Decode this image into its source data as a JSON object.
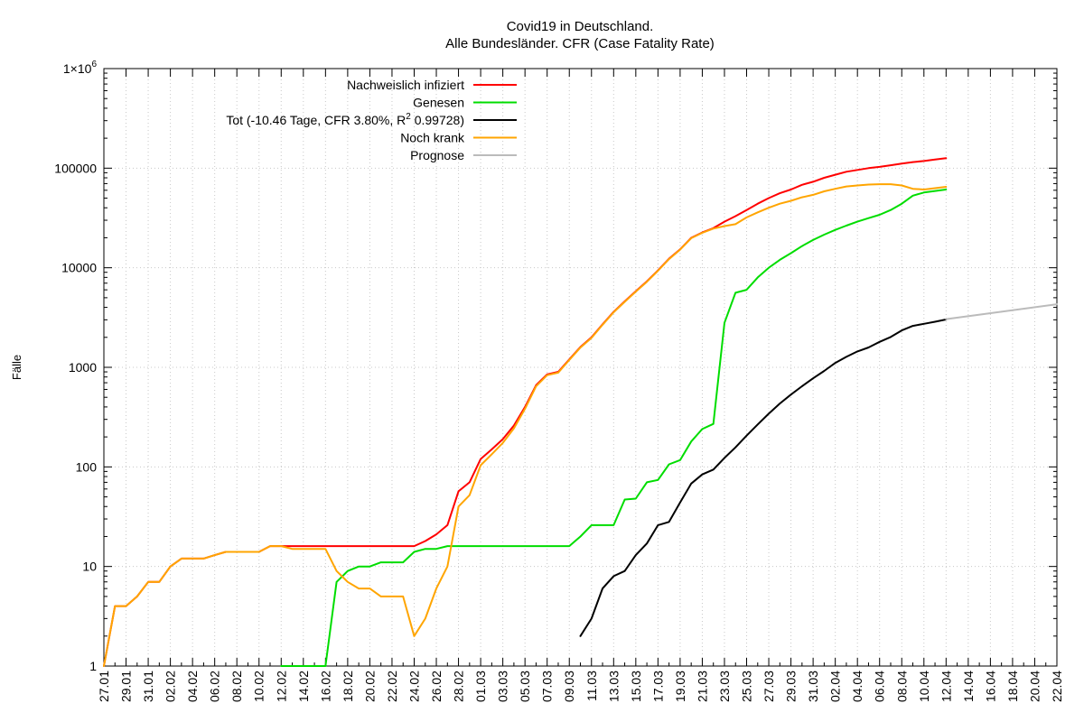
{
  "chart_data": {
    "type": "line",
    "title": "Covid19 in Deutschland.",
    "subtitle": "Alle Bundesländer. CFR (Case Fatality Rate)",
    "xlabel": "",
    "ylabel": "Fälle",
    "y_scale": "log",
    "ylim": [
      1,
      1000000
    ],
    "xlim": [
      "27.01",
      "22.04"
    ],
    "grid": true,
    "legend_position": "top-left",
    "y_ticks": [
      {
        "value": 1,
        "label": "1"
      },
      {
        "value": 10,
        "label": "10"
      },
      {
        "value": 100,
        "label": "100"
      },
      {
        "value": 1000,
        "label": "1000"
      },
      {
        "value": 10000,
        "label": "10000"
      },
      {
        "value": 100000,
        "label": "100000"
      },
      {
        "value": 1000000,
        "label": "1×10",
        "sup": "6"
      }
    ],
    "x_tick_labels": [
      "27.01",
      "29.01",
      "31.01",
      "02.02",
      "04.02",
      "06.02",
      "08.02",
      "10.02",
      "12.02",
      "14.02",
      "16.02",
      "18.02",
      "20.02",
      "22.02",
      "24.02",
      "26.02",
      "28.02",
      "01.03",
      "03.03",
      "05.03",
      "07.03",
      "09.03",
      "11.03",
      "13.03",
      "15.03",
      "17.03",
      "19.03",
      "21.03",
      "23.03",
      "25.03",
      "27.03",
      "29.03",
      "31.03",
      "02.04",
      "04.04",
      "06.04",
      "08.04",
      "10.04",
      "12.04",
      "14.04",
      "16.04",
      "18.04",
      "20.04",
      "22.04"
    ],
    "x_dates": [
      "27.01",
      "28.01",
      "29.01",
      "30.01",
      "31.01",
      "01.02",
      "02.02",
      "03.02",
      "04.02",
      "05.02",
      "06.02",
      "07.02",
      "08.02",
      "09.02",
      "10.02",
      "11.02",
      "12.02",
      "13.02",
      "14.02",
      "15.02",
      "16.02",
      "17.02",
      "18.02",
      "19.02",
      "20.02",
      "21.02",
      "22.02",
      "23.02",
      "24.02",
      "25.02",
      "26.02",
      "27.02",
      "28.02",
      "29.02",
      "01.03",
      "02.03",
      "03.03",
      "04.03",
      "05.03",
      "06.03",
      "07.03",
      "08.03",
      "09.03",
      "10.03",
      "11.03",
      "12.03",
      "13.03",
      "14.03",
      "15.03",
      "16.03",
      "17.03",
      "18.03",
      "19.03",
      "20.03",
      "21.03",
      "22.03",
      "23.03",
      "24.03",
      "25.03",
      "26.03",
      "27.03",
      "28.03",
      "29.03",
      "30.03",
      "31.03",
      "01.04",
      "02.04",
      "03.04",
      "04.04",
      "05.04",
      "06.04",
      "07.04",
      "08.04",
      "09.04",
      "10.04",
      "11.04",
      "12.04",
      "13.04",
      "14.04",
      "15.04",
      "16.04",
      "17.04",
      "18.04",
      "19.04",
      "20.04",
      "21.04",
      "22.04"
    ],
    "series": [
      {
        "name": "Nachweislich infiziert",
        "color": "#ff0000",
        "x": [
          "27.01",
          "28.01",
          "29.01",
          "30.01",
          "31.01",
          "01.02",
          "02.02",
          "03.02",
          "04.02",
          "05.02",
          "06.02",
          "07.02",
          "08.02",
          "09.02",
          "10.02",
          "11.02",
          "12.02",
          "13.02",
          "14.02",
          "15.02",
          "16.02",
          "17.02",
          "18.02",
          "19.02",
          "20.02",
          "21.02",
          "22.02",
          "23.02",
          "24.02",
          "25.02",
          "26.02",
          "27.02",
          "28.02",
          "29.02",
          "01.03",
          "02.03",
          "03.03",
          "04.03",
          "05.03",
          "06.03",
          "07.03",
          "08.03",
          "09.03",
          "10.03",
          "11.03",
          "12.03",
          "13.03",
          "14.03",
          "15.03",
          "16.03",
          "17.03",
          "18.03",
          "19.03",
          "20.03",
          "21.03",
          "22.03",
          "23.03",
          "24.03",
          "25.03",
          "26.03",
          "27.03",
          "28.03",
          "29.03",
          "30.03",
          "31.03",
          "01.04",
          "02.04",
          "03.04",
          "04.04",
          "05.04",
          "06.04",
          "07.04",
          "08.04",
          "09.04",
          "10.04",
          "11.04",
          "12.04"
        ],
        "values": [
          1,
          4,
          4,
          5,
          7,
          7,
          10,
          12,
          12,
          12,
          13,
          14,
          14,
          14,
          14,
          16,
          16,
          16,
          16,
          16,
          16,
          16,
          16,
          16,
          16,
          16,
          16,
          16,
          16,
          18,
          21,
          26,
          57,
          70,
          120,
          150,
          190,
          260,
          400,
          660,
          850,
          900,
          1200,
          1600,
          2000,
          2700,
          3600,
          4600,
          5800,
          7300,
          9400,
          12300,
          15300,
          20000,
          22600,
          25000,
          29000,
          33000,
          38000,
          44000,
          50000,
          56000,
          61000,
          68000,
          73000,
          80000,
          86000,
          92000,
          96000,
          100000,
          103000,
          107000,
          111000,
          115000,
          118000,
          122000,
          126000
        ]
      },
      {
        "name": "Genesen",
        "color": "#00dd00",
        "x": [
          "12.02",
          "13.02",
          "14.02",
          "15.02",
          "16.02",
          "17.02",
          "18.02",
          "19.02",
          "20.02",
          "21.02",
          "22.02",
          "23.02",
          "24.02",
          "25.02",
          "26.02",
          "27.02",
          "28.02",
          "29.02",
          "01.03",
          "02.03",
          "03.03",
          "04.03",
          "05.03",
          "06.03",
          "07.03",
          "08.03",
          "09.03",
          "10.03",
          "11.03",
          "12.03",
          "13.03",
          "14.03",
          "15.03",
          "16.03",
          "17.03",
          "18.03",
          "19.03",
          "20.03",
          "21.03",
          "22.03",
          "23.03",
          "24.03",
          "25.03",
          "26.03",
          "27.03",
          "28.03",
          "29.03",
          "30.03",
          "31.03",
          "01.04",
          "02.04",
          "03.04",
          "04.04",
          "05.04",
          "06.04",
          "07.04",
          "08.04",
          "09.04",
          "10.04",
          "11.04",
          "12.04"
        ],
        "values": [
          1,
          1,
          1,
          1,
          1,
          7,
          9,
          10,
          10,
          11,
          11,
          11,
          14,
          15,
          15,
          16,
          16,
          16,
          16,
          16,
          16,
          16,
          16,
          16,
          16,
          16,
          16,
          20,
          26,
          26,
          26,
          47,
          48,
          70,
          74,
          106,
          117,
          180,
          240,
          270,
          2800,
          5600,
          6000,
          8000,
          10000,
          12000,
          14000,
          16500,
          19000,
          21500,
          24000,
          26500,
          29000,
          31500,
          34000,
          38000,
          44000,
          53000,
          57000,
          59000,
          61000
        ]
      },
      {
        "name": "Tot (-10.46 Tage, CFR 3.80%, R² 0.99728)",
        "color": "#000000",
        "x": [
          "10.03",
          "11.03",
          "12.03",
          "13.03",
          "14.03",
          "15.03",
          "16.03",
          "17.03",
          "18.03",
          "19.03",
          "20.03",
          "21.03",
          "22.03",
          "23.03",
          "24.03",
          "25.03",
          "26.03",
          "27.03",
          "28.03",
          "29.03",
          "30.03",
          "31.03",
          "01.04",
          "02.04",
          "03.04",
          "04.04",
          "05.04",
          "06.04",
          "07.04",
          "08.04",
          "09.04",
          "10.04",
          "11.04",
          "12.04"
        ],
        "values": [
          2,
          3,
          6,
          8,
          9,
          13,
          17,
          26,
          28,
          44,
          68,
          84,
          94,
          123,
          157,
          206,
          267,
          342,
          433,
          533,
          645,
          775,
          920,
          1107,
          1275,
          1444,
          1584,
          1800,
          2016,
          2349,
          2607,
          2736,
          2871,
          3022
        ]
      },
      {
        "name": "Noch krank",
        "color": "#ffa500",
        "x": [
          "27.01",
          "28.01",
          "29.01",
          "30.01",
          "31.01",
          "01.02",
          "02.02",
          "03.02",
          "04.02",
          "05.02",
          "06.02",
          "07.02",
          "08.02",
          "09.02",
          "10.02",
          "11.02",
          "12.02",
          "13.02",
          "14.02",
          "15.02",
          "16.02",
          "17.02",
          "18.02",
          "19.02",
          "20.02",
          "21.02",
          "22.02",
          "23.02",
          "24.02",
          "25.02",
          "26.02",
          "27.02",
          "28.02",
          "29.02",
          "01.03",
          "02.03",
          "03.03",
          "04.03",
          "05.03",
          "06.03",
          "07.03",
          "08.03",
          "09.03",
          "10.03",
          "11.03",
          "12.03",
          "13.03",
          "14.03",
          "15.03",
          "16.03",
          "17.03",
          "18.03",
          "19.03",
          "20.03",
          "21.03",
          "22.03",
          "23.03",
          "24.03",
          "25.03",
          "26.03",
          "27.03",
          "28.03",
          "29.03",
          "30.03",
          "31.03",
          "01.04",
          "02.04",
          "03.04",
          "04.04",
          "05.04",
          "06.04",
          "07.04",
          "08.04",
          "09.04",
          "10.04",
          "11.04",
          "12.04"
        ],
        "values": [
          1,
          4,
          4,
          5,
          7,
          7,
          10,
          12,
          12,
          12,
          13,
          14,
          14,
          14,
          14,
          16,
          16,
          15,
          15,
          15,
          15,
          9,
          7,
          6,
          6,
          5,
          5,
          5,
          2,
          3,
          6,
          10,
          40,
          52,
          104,
          134,
          174,
          244,
          384,
          644,
          834,
          884,
          1184,
          1580,
          1974,
          2674,
          3574,
          4550,
          5750,
          7230,
          9330,
          12200,
          15200,
          19800,
          22400,
          24700,
          26200,
          27400,
          32000,
          36000,
          40000,
          44000,
          47000,
          51000,
          54000,
          58500,
          62000,
          65500,
          67000,
          68500,
          69000,
          69000,
          67000,
          62000,
          61000,
          63000,
          65000
        ]
      },
      {
        "name": "Prognose",
        "color": "#bbbbbb",
        "x": [
          "12.04",
          "22.04"
        ],
        "values": [
          3050,
          4300
        ]
      }
    ]
  }
}
